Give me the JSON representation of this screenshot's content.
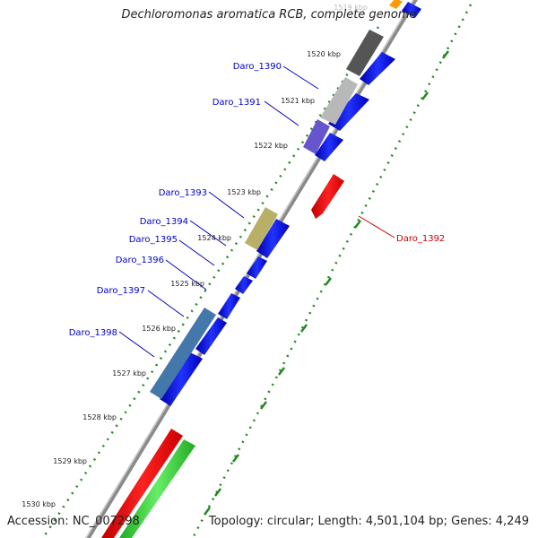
{
  "title": "Dechloromonas aromatica RCB, complete genome",
  "footer": {
    "accession": "Accession: NC_007298",
    "summary": "Topology: circular; Length: 4,501,104 bp; Genes: 4,249"
  },
  "ticks": [
    "1519 kbp",
    "1520 kbp",
    "1521 kbp",
    "1522 kbp",
    "1523 kbp",
    "1524 kbp",
    "1525 kbp",
    "1526 kbp",
    "1527 kbp",
    "1528 kbp",
    "1529 kbp",
    "1530 kbp"
  ],
  "genes": [
    {
      "label": "Daro_1390",
      "color": "#0000cc"
    },
    {
      "label": "Daro_1391",
      "color": "#0000cc"
    },
    {
      "label": "Daro_1392",
      "color": "#cc0000"
    },
    {
      "label": "Daro_1393",
      "color": "#0000cc"
    },
    {
      "label": "Daro_1394",
      "color": "#0000cc"
    },
    {
      "label": "Daro_1395",
      "color": "#0000cc"
    },
    {
      "label": "Daro_1396",
      "color": "#0000cc"
    },
    {
      "label": "Daro_1397",
      "color": "#0000cc"
    },
    {
      "label": "Daro_1398",
      "color": "#0000cc"
    }
  ],
  "colors": {
    "backbone": "#8a8a8a",
    "cds_forward": "#0000ee",
    "cds_reverse": "#ee0000",
    "rna": "#33cc33",
    "gc_skew": "#228822"
  }
}
